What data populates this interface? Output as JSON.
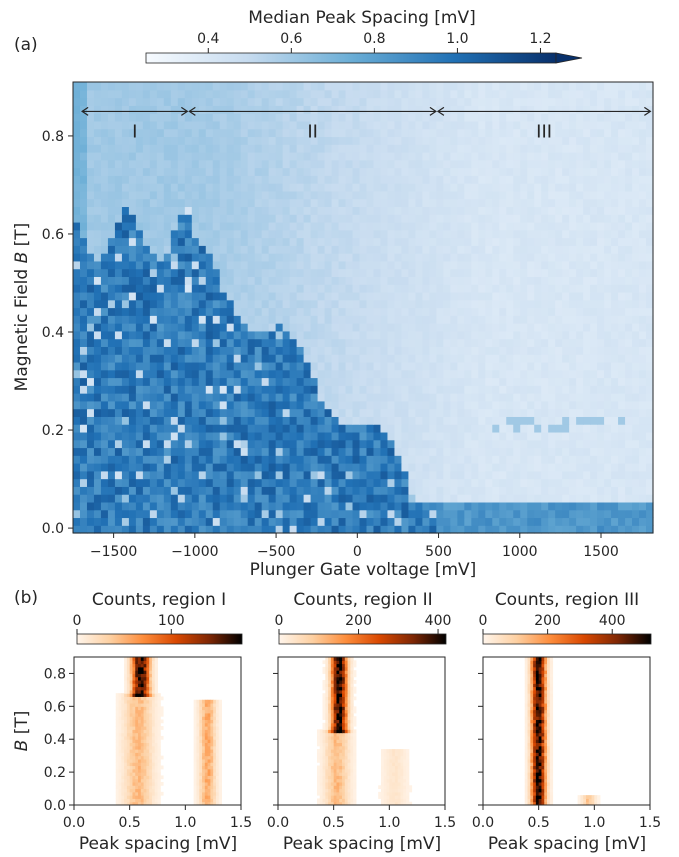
{
  "panel_labels": {
    "a": "(a)",
    "b": "(b)"
  },
  "chart_data": [
    {
      "type": "heatmap",
      "colorbar_title": "Median Peak Spacing [mV]",
      "colorbar_ticks": [
        "0.4",
        "0.6",
        "0.8",
        "1.0",
        "1.2"
      ],
      "colorbar_range": [
        0.25,
        1.3
      ],
      "colorbar_extend": "max",
      "colormap": [
        "#f7fbff",
        "#c6dbef",
        "#6baed6",
        "#2171b5",
        "#08306b"
      ],
      "xlabel": "Plunger Gate voltage [mV]",
      "ylabel": "Magnetic Field B [T]",
      "xlim": [
        -1750,
        1820
      ],
      "ylim": [
        -0.01,
        0.91
      ],
      "xticks": [
        -1500,
        -1000,
        -500,
        0,
        500,
        1000,
        1500
      ],
      "xticklabels": [
        "−1500",
        "−1000",
        "−500",
        "0",
        "500",
        "1000",
        "1500"
      ],
      "yticks": [
        0.0,
        0.2,
        0.4,
        0.6,
        0.8
      ],
      "yticklabels": [
        "0.0",
        "0.2",
        "0.4",
        "0.6",
        "0.8"
      ],
      "regions": [
        {
          "label": "I",
          "x_start": -1700,
          "x_end": -1040
        },
        {
          "label": "II",
          "x_start": -1040,
          "x_end": 490
        },
        {
          "label": "III",
          "x_start": 490,
          "x_end": 1810
        }
      ],
      "region_arrow_y": 0.85,
      "value_levels": {
        "high_field_low_gate": 0.62,
        "high_field_high_gate": 0.42,
        "low_field_low_gate": 1.12,
        "low_field_high_gate_floor": 0.82
      }
    },
    {
      "type": "heatmap",
      "colorbar_title": "Counts, region I",
      "colorbar_ticks": [
        "0",
        "100"
      ],
      "colorbar_tick_values": [
        0,
        100
      ],
      "colorbar_range": [
        0,
        175
      ],
      "colormap": [
        "#fff5eb",
        "#fdd0a2",
        "#fd8d3c",
        "#d94801",
        "#7f2704",
        "#000000"
      ],
      "xlabel": "Peak spacing [mV]",
      "ylabel": "B [T]",
      "xlim": [
        0.0,
        1.5
      ],
      "ylim": [
        0.0,
        0.9
      ],
      "xticks": [
        0.0,
        0.5,
        1.0,
        1.5
      ],
      "xticklabels": [
        "0.0",
        "0.5",
        "1.0",
        "1.5"
      ],
      "yticks": [
        0.0,
        0.2,
        0.4,
        0.6,
        0.8
      ],
      "yticklabels": [
        "0.0",
        "0.2",
        "0.4",
        "0.6",
        "0.8"
      ],
      "features": [
        {
          "peak_spacing": 0.6,
          "b_min": 0.67,
          "b_max": 0.9,
          "width": 0.11,
          "level": 170
        },
        {
          "peak_spacing": 0.58,
          "b_min": 0.0,
          "b_max": 0.67,
          "width": 0.18,
          "level": 45
        },
        {
          "peak_spacing": 1.2,
          "b_min": 0.0,
          "b_max": 0.63,
          "width": 0.1,
          "level": 55
        }
      ]
    },
    {
      "type": "heatmap",
      "colorbar_title": "Counts, region II",
      "colorbar_ticks": [
        "0",
        "200",
        "400"
      ],
      "colorbar_tick_values": [
        0,
        200,
        400
      ],
      "colorbar_range": [
        0,
        420
      ],
      "colormap": [
        "#fff5eb",
        "#fdd0a2",
        "#fd8d3c",
        "#d94801",
        "#7f2704",
        "#000000"
      ],
      "xlabel": "Peak spacing [mV]",
      "xlim": [
        0.0,
        1.5
      ],
      "ylim": [
        0.0,
        0.9
      ],
      "xticks": [
        0.0,
        0.5,
        1.0,
        1.5
      ],
      "xticklabels": [
        "0.0",
        "0.5",
        "1.0",
        "1.5"
      ],
      "features": [
        {
          "peak_spacing": 0.55,
          "b_min": 0.45,
          "b_max": 0.9,
          "width": 0.1,
          "level": 410
        },
        {
          "peak_spacing": 0.53,
          "b_min": 0.0,
          "b_max": 0.45,
          "width": 0.15,
          "level": 110
        },
        {
          "peak_spacing": 1.05,
          "b_min": 0.0,
          "b_max": 0.35,
          "width": 0.15,
          "level": 35
        }
      ]
    },
    {
      "type": "heatmap",
      "colorbar_title": "Counts, region III",
      "colorbar_ticks": [
        "0",
        "200",
        "400"
      ],
      "colorbar_tick_values": [
        0,
        200,
        400
      ],
      "colorbar_range": [
        0,
        520
      ],
      "colormap": [
        "#fff5eb",
        "#fdd0a2",
        "#fd8d3c",
        "#d94801",
        "#7f2704",
        "#000000"
      ],
      "xlabel": "Peak spacing [mV]",
      "xlim": [
        0.0,
        1.5
      ],
      "ylim": [
        0.0,
        0.9
      ],
      "xticks": [
        0.0,
        0.5,
        1.0,
        1.5
      ],
      "xticklabels": [
        "0.0",
        "0.5",
        "1.0",
        "1.5"
      ],
      "features": [
        {
          "peak_spacing": 0.5,
          "b_min": 0.0,
          "b_max": 0.9,
          "width": 0.09,
          "level": 500
        },
        {
          "peak_spacing": 0.95,
          "b_min": 0.0,
          "b_max": 0.06,
          "width": 0.08,
          "level": 120
        }
      ]
    }
  ]
}
